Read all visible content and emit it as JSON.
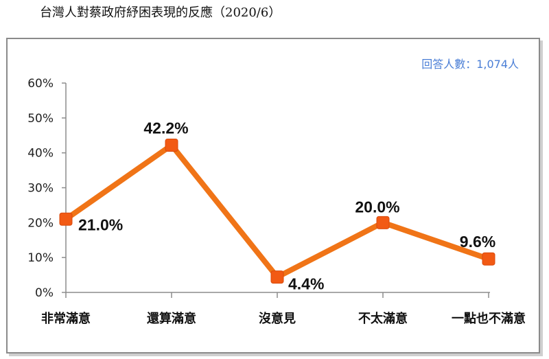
{
  "title": "台灣人對蔡政府紓困表現的反應（2020/6）",
  "respondents": "回答人數：1,074人",
  "colors": {
    "line": "#f07417",
    "marker": "#f25a14",
    "axis": "#8c8c8c",
    "respondents_text": "#4a7ed6"
  },
  "chart_data": {
    "type": "line",
    "categories": [
      "非常滿意",
      "還算滿意",
      "沒意見",
      "不太滿意",
      "一點也不滿意"
    ],
    "values": [
      21.0,
      42.2,
      4.4,
      20.0,
      9.6
    ],
    "value_labels": [
      "21.0%",
      "42.2%",
      "4.4%",
      "20.0%",
      "9.6%"
    ],
    "ylim": [
      0,
      60
    ],
    "yticks": [
      "0%",
      "10%",
      "20%",
      "30%",
      "40%",
      "50%",
      "60%"
    ],
    "grid": false,
    "legend": "none"
  }
}
